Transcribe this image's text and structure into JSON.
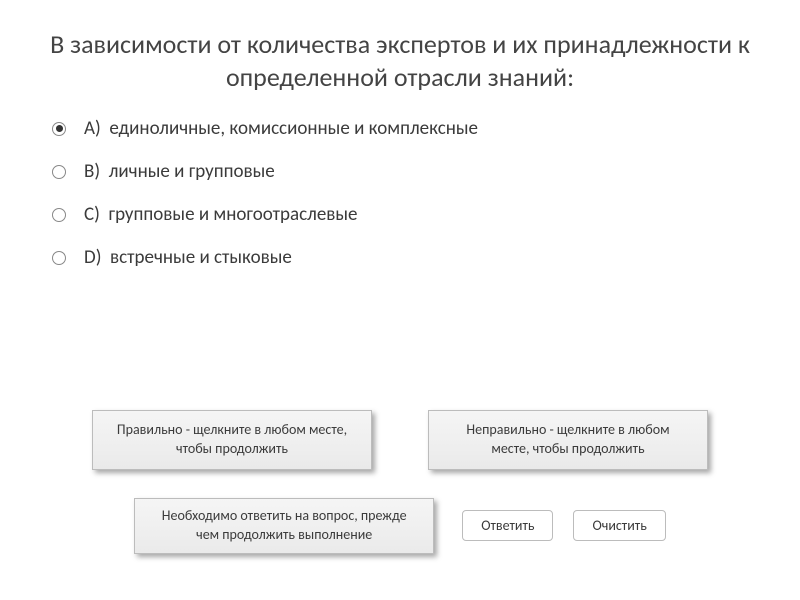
{
  "title": "В зависимости от количества экспертов и их принадлежности к определенной отрасли знаний:",
  "options": [
    {
      "letter": "A)",
      "text": "единоличные, комиссионные и комплексные",
      "selected": true
    },
    {
      "letter": "B)",
      "text": "личные и групповые",
      "selected": false
    },
    {
      "letter": "C)",
      "text": "групповые и многоотраслевые",
      "selected": false
    },
    {
      "letter": "D)",
      "text": "встречные и стыковые",
      "selected": false
    }
  ],
  "feedback": {
    "correct": "Правильно - щелкните в любом месте, чтобы продолжить",
    "incorrect": "Неправильно - щелкните в любом месте, чтобы продолжить"
  },
  "prompt": "Необходимо ответить на вопрос, прежде чем продолжить выполнение",
  "buttons": {
    "submit": "Ответить",
    "clear": "Очистить"
  },
  "style": {
    "background_color": "#ffffff",
    "text_color": "#3b3b3b",
    "title_fontsize": 26,
    "option_fontsize": 19,
    "small_fontsize": 14,
    "box_bg_top": "#f5f5f5",
    "box_bg_bottom": "#eaeaea",
    "box_border": "#bcbcbc",
    "shadow": "rgba(0,0,0,0.35)",
    "radio_border": "#888888",
    "radio_dot": "#333333",
    "btn_bg": "#ffffff"
  }
}
